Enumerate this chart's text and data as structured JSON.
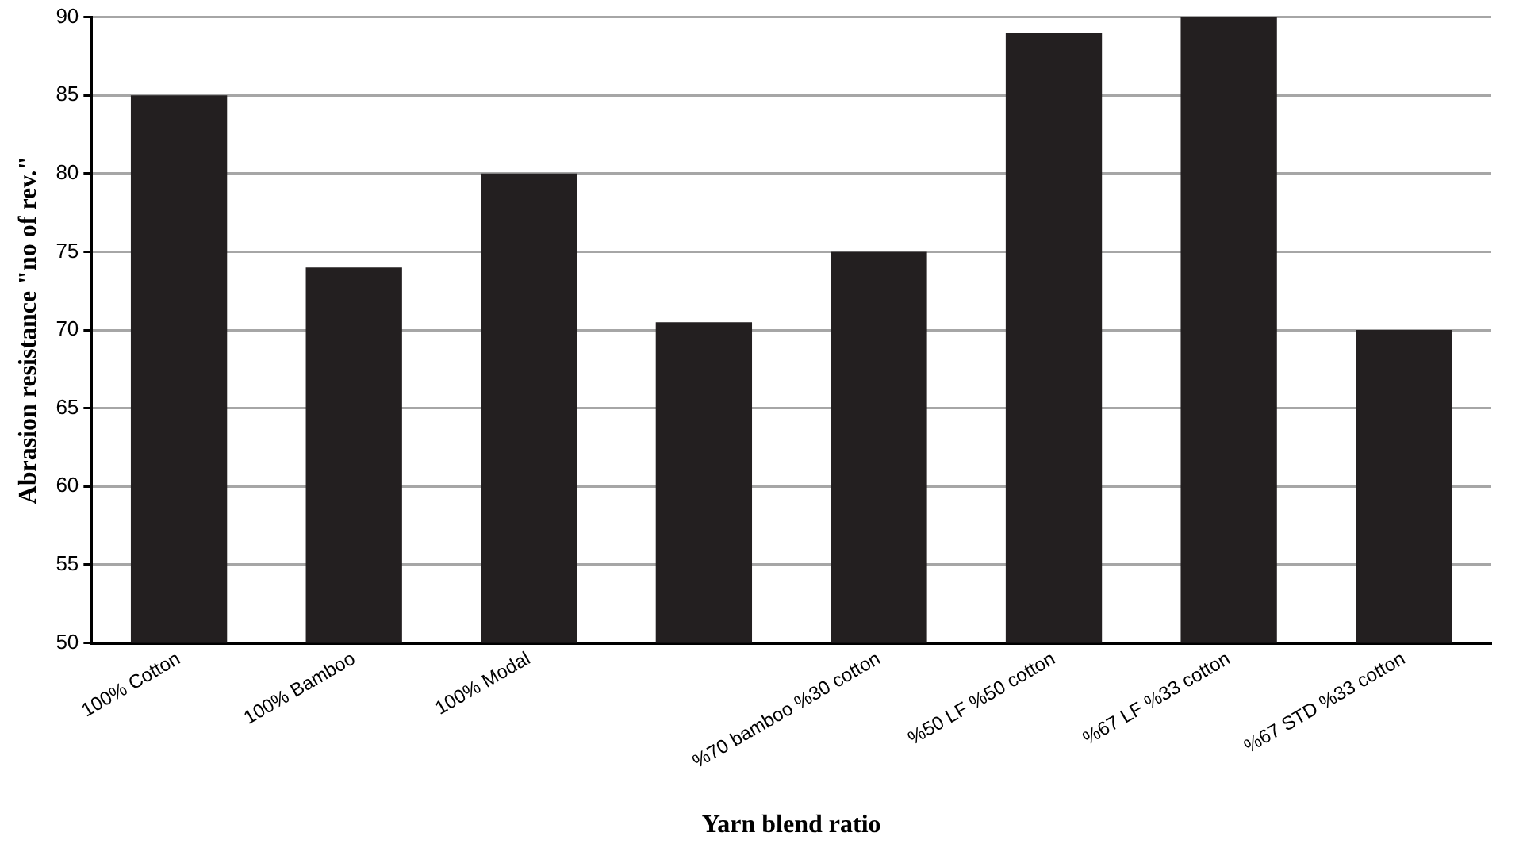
{
  "chart_data": {
    "type": "bar",
    "xlabel": "Yarn blend ratio",
    "ylabel": "Abrasion resistance \"no of rev.\"",
    "categories": [
      "100% Cotton",
      "100% Bamboo",
      "100% Modal",
      null,
      "%70 bamboo %30 cotton",
      "%50 LF %50 cotton",
      "%67 LF %33 cotton",
      "%67 STD %33 cotton"
    ],
    "values": [
      85,
      74,
      80,
      70.5,
      75,
      89,
      90,
      70
    ],
    "color": "#231f20",
    "ylim": [
      50,
      90
    ],
    "yticks": [
      50,
      55,
      60,
      65,
      70,
      75,
      80,
      85,
      90
    ],
    "grid": "y",
    "legend": false
  }
}
